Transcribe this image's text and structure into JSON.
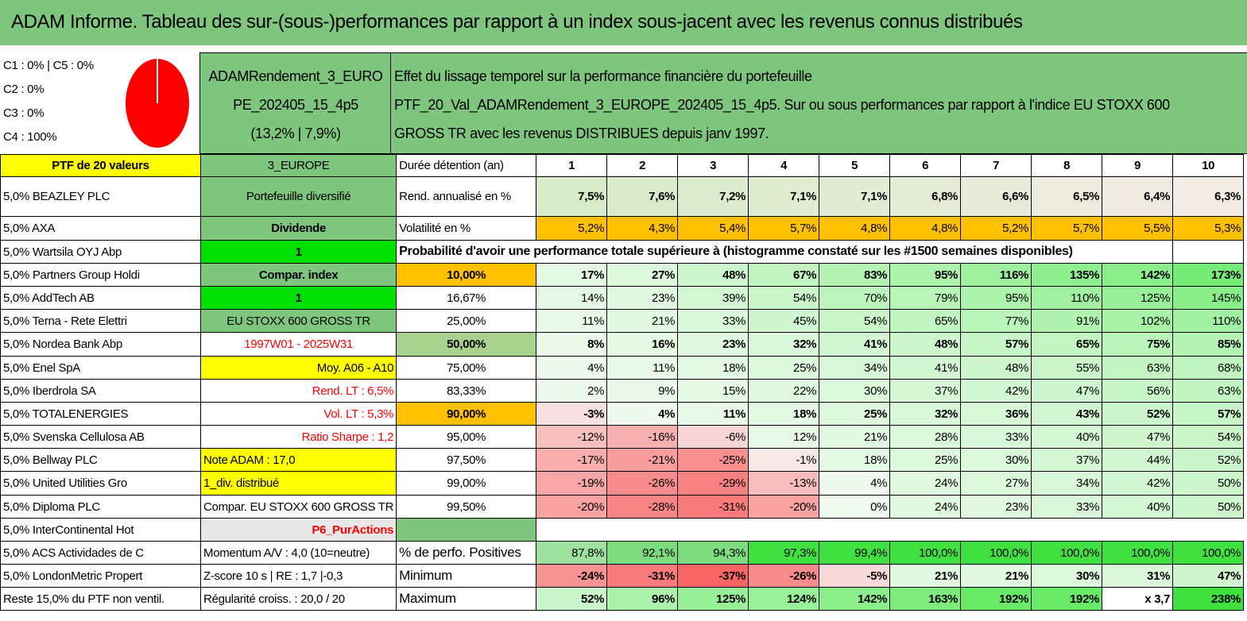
{
  "title": "ADAM Informe. Tableau des sur-(sous-)performances par rapport à un index sous-jacent avec les revenus connus distribués",
  "legend": [
    "C1 : 0% | C5 : 0%",
    "C2 : 0%",
    "C3 : 0%",
    "C4 : 100%"
  ],
  "pie": {
    "C4": 100,
    "color": "#ff0000"
  },
  "portfolio_name": [
    "ADAMRendement_3_EURO",
    "PE_202405_15_4p5",
    "(13,2% | 7,9%)"
  ],
  "description": [
    "Effet du lissage temporel sur la performance financière du portefeuille",
    "PTF_20_Val_ADAMRendement_3_EUROPE_202405_15_4p5. Sur ou sous performances par rapport à l'indice EU STOXX 600",
    "GROSS TR avec les revenus DISTRIBUES depuis janv 1997."
  ],
  "ptf_label": "PTF de 20 valeurs",
  "region": "3_EUROPE",
  "duration_label": "Durée détention (an)",
  "years": [
    "1",
    "2",
    "3",
    "4",
    "5",
    "6",
    "7",
    "8",
    "9",
    "10"
  ],
  "holdings": [
    "5,0% BEAZLEY PLC",
    "5,0% AXA",
    "5,0% Wartsila OYJ Abp",
    "5,0% Partners Group Holdi",
    "5,0% AddTech AB",
    "5,0% Terna - Rete Elettri",
    "5,0% Nordea Bank Abp",
    "5,0% Enel SpA",
    "5,0% Iberdrola SA",
    "5,0% TOTALENERGIES",
    "5,0% Svenska Cellulosa AB",
    "5,0% Bellway PLC",
    "5,0% United Utilities Gro",
    "5,0% Diploma PLC",
    "5,0% InterContinental Hot",
    "5,0% ACS Actividades de C",
    "5,0% LondonMetric Propert",
    "Reste 15,0% du PTF non ventil."
  ],
  "params": [
    "Portefeuille diversifié",
    "Dividende",
    "1",
    "Compar. index",
    "1",
    "EU STOXX 600 GROSS TR",
    "1997W01 - 2025W31",
    "Moy. A06 - A10",
    "Rend. LT : 6,5%",
    "Vol. LT : 5,3%",
    "Ratio Sharpe : 1,2",
    "Note ADAM : 17,0",
    "1_div. distribué",
    "Compar. EU STOXX 600 GROSS TR",
    "P6_PurActions",
    "Momentum A/V : 4,0 (10=neutre)",
    "Z-score 10 s | RE : 1,7 |-0,3",
    "Régularité croiss. : 20,0 / 20"
  ],
  "rend_label": "Rend. annualisé en %",
  "rend": [
    "7,5%",
    "7,6%",
    "7,2%",
    "7,1%",
    "7,1%",
    "6,8%",
    "6,6%",
    "6,5%",
    "6,4%",
    "6,3%"
  ],
  "vol_label": "Volatilité en %",
  "vol": [
    "5,2%",
    "4,3%",
    "5,4%",
    "5,7%",
    "4,8%",
    "4,8%",
    "5,2%",
    "5,7%",
    "5,5%",
    "5,3%"
  ],
  "proba_label": "Probabilité d'avoir une performance totale supérieure à (histogramme constaté sur les #1500 semaines disponibles)",
  "proba_rows": [
    {
      "p": "10,00%",
      "v": [
        "17%",
        "27%",
        "48%",
        "67%",
        "83%",
        "95%",
        "116%",
        "135%",
        "142%",
        "173%"
      ]
    },
    {
      "p": "16,67%",
      "v": [
        "14%",
        "23%",
        "39%",
        "54%",
        "70%",
        "79%",
        "95%",
        "110%",
        "125%",
        "145%"
      ]
    },
    {
      "p": "25,00%",
      "v": [
        "11%",
        "21%",
        "33%",
        "45%",
        "54%",
        "65%",
        "77%",
        "91%",
        "102%",
        "110%"
      ]
    },
    {
      "p": "50,00%",
      "v": [
        "8%",
        "16%",
        "23%",
        "32%",
        "41%",
        "48%",
        "57%",
        "65%",
        "75%",
        "85%"
      ]
    },
    {
      "p": "75,00%",
      "v": [
        "4%",
        "11%",
        "18%",
        "25%",
        "34%",
        "41%",
        "48%",
        "55%",
        "63%",
        "68%"
      ]
    },
    {
      "p": "83,33%",
      "v": [
        "2%",
        "9%",
        "15%",
        "22%",
        "30%",
        "37%",
        "42%",
        "47%",
        "56%",
        "63%"
      ]
    },
    {
      "p": "90,00%",
      "v": [
        "-3%",
        "4%",
        "11%",
        "18%",
        "25%",
        "32%",
        "36%",
        "43%",
        "52%",
        "57%"
      ]
    },
    {
      "p": "95,00%",
      "v": [
        "-12%",
        "-16%",
        "-6%",
        "12%",
        "21%",
        "28%",
        "33%",
        "40%",
        "47%",
        "54%"
      ]
    },
    {
      "p": "97,50%",
      "v": [
        "-17%",
        "-21%",
        "-25%",
        "-1%",
        "18%",
        "25%",
        "30%",
        "37%",
        "44%",
        "52%"
      ]
    },
    {
      "p": "99,00%",
      "v": [
        "-19%",
        "-26%",
        "-29%",
        "-13%",
        "4%",
        "24%",
        "27%",
        "34%",
        "42%",
        "50%"
      ]
    },
    {
      "p": "99,50%",
      "v": [
        "-20%",
        "-28%",
        "-31%",
        "-20%",
        "0%",
        "24%",
        "23%",
        "33%",
        "40%",
        "50%"
      ]
    }
  ],
  "pos_label": "% de perfo. Positives",
  "pos": [
    "87,8%",
    "92,1%",
    "94,3%",
    "97,3%",
    "99,4%",
    "100,0%",
    "100,0%",
    "100,0%",
    "100,0%",
    "100,0%"
  ],
  "min_label": "Minimum",
  "min": [
    "-24%",
    "-31%",
    "-37%",
    "-26%",
    "-5%",
    "21%",
    "21%",
    "30%",
    "31%",
    "47%"
  ],
  "max_label": "Maximum",
  "max": [
    "52%",
    "96%",
    "125%",
    "124%",
    "142%",
    "163%",
    "192%",
    "192%",
    "x 3,7",
    "238%"
  ],
  "colors": {
    "header_green": "#7ec57e",
    "yellow": "#ffff00",
    "bright_green": "#00e000",
    "orange": "#ffc000",
    "red_text": "#ff0000"
  }
}
